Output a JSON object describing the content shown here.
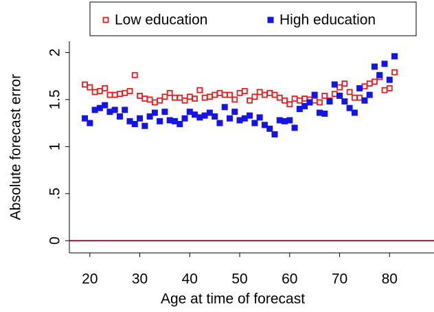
{
  "chart_data": {
    "type": "scatter",
    "x_label": "Age at time of forecast",
    "y_label": "Absolute forecast error",
    "x": [
      19,
      20,
      21,
      22,
      23,
      24,
      25,
      26,
      27,
      28,
      29,
      30,
      31,
      32,
      33,
      34,
      35,
      36,
      37,
      38,
      39,
      40,
      41,
      42,
      43,
      44,
      45,
      46,
      47,
      48,
      49,
      50,
      51,
      52,
      53,
      54,
      55,
      56,
      57,
      58,
      59,
      60,
      61,
      62,
      63,
      64,
      65,
      66,
      67,
      68,
      69,
      70,
      71,
      72,
      73,
      74,
      75,
      76,
      77,
      78,
      79,
      80,
      81
    ],
    "series": [
      {
        "name": "Low education",
        "color": "#e8191a",
        "marker": "hollow-square",
        "values": [
          1.66,
          1.63,
          1.58,
          1.59,
          1.62,
          1.55,
          1.55,
          1.56,
          1.57,
          1.59,
          1.76,
          1.54,
          1.51,
          1.5,
          1.47,
          1.49,
          1.53,
          1.57,
          1.52,
          1.52,
          1.49,
          1.53,
          1.51,
          1.6,
          1.52,
          1.53,
          1.55,
          1.57,
          1.55,
          1.55,
          1.5,
          1.57,
          1.59,
          1.49,
          1.53,
          1.58,
          1.55,
          1.57,
          1.55,
          1.52,
          1.49,
          1.45,
          1.51,
          1.49,
          1.51,
          1.5,
          1.49,
          1.47,
          1.54,
          1.49,
          1.56,
          1.63,
          1.67,
          1.58,
          1.52,
          1.52,
          1.64,
          1.67,
          1.69,
          1.74,
          1.6,
          1.62,
          1.79
        ]
      },
      {
        "name": "High education",
        "color": "#1414e6",
        "marker": "filled-square",
        "values": [
          1.3,
          1.25,
          1.39,
          1.41,
          1.44,
          1.37,
          1.39,
          1.32,
          1.39,
          1.27,
          1.24,
          1.3,
          1.22,
          1.32,
          1.36,
          1.27,
          1.37,
          1.28,
          1.27,
          1.24,
          1.3,
          1.37,
          1.34,
          1.31,
          1.33,
          1.36,
          1.32,
          1.25,
          1.42,
          1.3,
          1.37,
          1.28,
          1.3,
          1.33,
          1.25,
          1.31,
          1.23,
          1.19,
          1.13,
          1.28,
          1.27,
          1.28,
          1.2,
          1.4,
          1.43,
          1.47,
          1.55,
          1.36,
          1.35,
          1.48,
          1.66,
          1.54,
          1.48,
          1.41,
          1.36,
          1.62,
          1.49,
          1.55,
          1.85,
          1.76,
          1.88,
          1.71,
          1.96
        ]
      }
    ],
    "xlim": [
      15.9,
      88.9
    ],
    "ylim": [
      -0.13,
      2.12
    ],
    "xticks": [
      20,
      30,
      40,
      50,
      60,
      70,
      80
    ],
    "yticks": [
      0,
      {
        "value": 0.5,
        "label": ".5"
      },
      1,
      1.5,
      2
    ],
    "reference_line": {
      "y": 0,
      "color": "#90133f"
    },
    "legend_position": "top"
  }
}
